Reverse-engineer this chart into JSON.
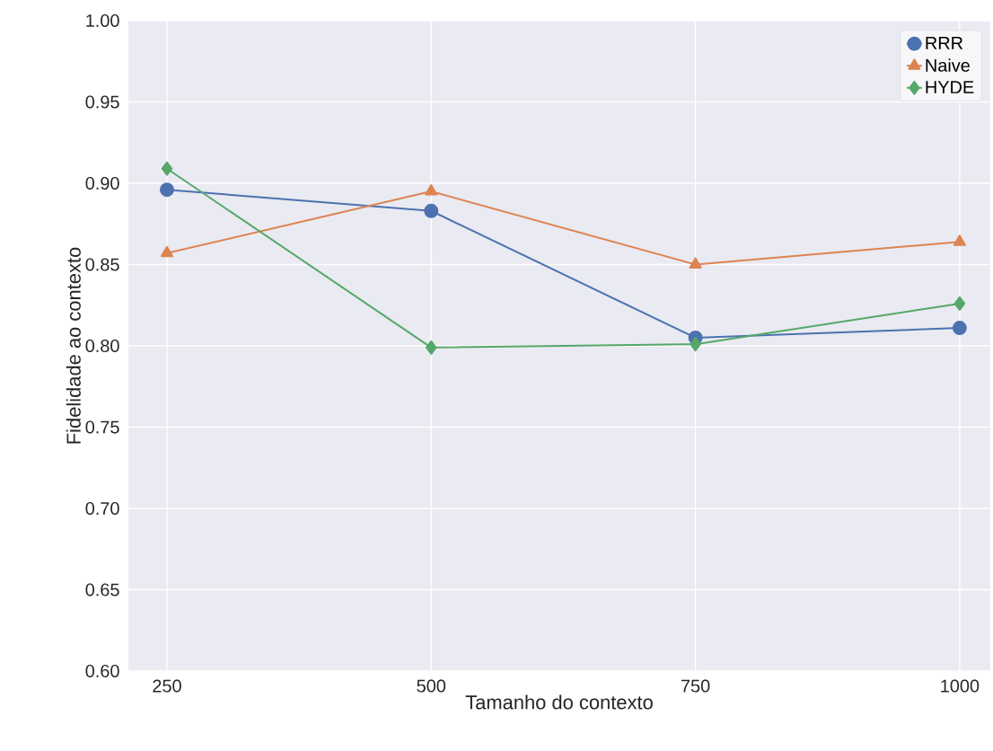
{
  "chart_data": {
    "type": "line",
    "xlabel": "Tamanho do contexto",
    "ylabel": "Fidelidade ao contexto",
    "x": [
      250,
      500,
      750,
      1000
    ],
    "series": [
      {
        "name": "RRR",
        "color": "#4c72b0",
        "marker": "circle",
        "values": [
          0.896,
          0.883,
          0.805,
          0.811
        ]
      },
      {
        "name": "Naive",
        "color": "#dd8452",
        "marker": "triangle",
        "values": [
          0.857,
          0.895,
          0.85,
          0.864
        ]
      },
      {
        "name": "HYDE",
        "color": "#55a868",
        "marker": "diamond",
        "values": [
          0.909,
          0.799,
          0.801,
          0.826
        ]
      }
    ],
    "xlim": [
      213.5,
      1029
    ],
    "xticks": [
      250,
      500,
      750,
      1000
    ],
    "ylim": [
      0.6,
      1.0
    ],
    "yticks": [
      {
        "value": 0.6,
        "label": "0.60"
      },
      {
        "value": 0.65,
        "label": "0.65"
      },
      {
        "value": 0.7,
        "label": "0.70"
      },
      {
        "value": 0.75,
        "label": "0.75"
      },
      {
        "value": 0.8,
        "label": "0.80"
      },
      {
        "value": 0.85,
        "label": "0.85"
      },
      {
        "value": 0.9,
        "label": "0.90"
      },
      {
        "value": 0.95,
        "label": "0.95"
      },
      {
        "value": 1.0,
        "label": "1.00"
      }
    ],
    "grid": true,
    "legend": "top right",
    "line_style": "solid"
  }
}
